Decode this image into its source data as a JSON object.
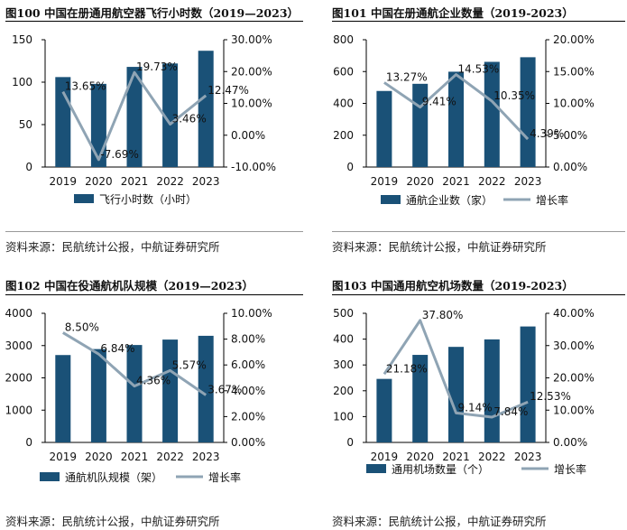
{
  "colors": {
    "bar": "#1a5177",
    "line": "#8fa4b4",
    "axis": "#000000"
  },
  "chart_data": [
    {
      "type": "bar",
      "title": "图100 中国在册通用航空器飞行小时数（2019—2023）",
      "source": "资料来源：民航统计公报，中航证券研究所",
      "categories": [
        "2019",
        "2020",
        "2021",
        "2022",
        "2023"
      ],
      "series": [
        {
          "name": "飞行小时数（小时）",
          "kind": "bar",
          "axis": "left",
          "values": [
            106,
            98,
            118,
            122,
            137
          ]
        },
        {
          "name": "",
          "kind": "line",
          "axis": "right",
          "values": [
            13.65,
            -7.69,
            19.73,
            3.46,
            12.47
          ]
        }
      ],
      "point_labels": [
        "13.65%",
        "-7.69%",
        "19.73%",
        "3.46%",
        "12.47%"
      ],
      "left_ticks": [
        "0",
        "50",
        "100",
        "150"
      ],
      "ylim": [
        0,
        150
      ],
      "right_ticks": [
        "-10.00%",
        "0.00%",
        "10.00%",
        "20.00%",
        "30.00%"
      ],
      "ylim_right": [
        -10,
        30
      ],
      "legend": [
        "飞行小时数（小时）"
      ]
    },
    {
      "type": "bar",
      "title": "图101 中国在册通航企业数量（2019-2023）",
      "source": "资料来源：民航统计公报，中航证券研究所",
      "categories": [
        "2019",
        "2020",
        "2021",
        "2022",
        "2023"
      ],
      "series": [
        {
          "name": "通航企业数（家）",
          "kind": "bar",
          "axis": "left",
          "values": [
            478,
            523,
            599,
            661,
            690
          ]
        },
        {
          "name": "增长率",
          "kind": "line",
          "axis": "right",
          "values": [
            13.27,
            9.41,
            14.53,
            10.35,
            4.39
          ]
        }
      ],
      "point_labels": [
        "13.27%",
        "9.41%",
        "14.53%",
        "10.35%",
        "4.39%"
      ],
      "left_ticks": [
        "0",
        "200",
        "400",
        "600",
        "800"
      ],
      "ylim": [
        0,
        800
      ],
      "right_ticks": [
        "0.00%",
        "5.00%",
        "10.00%",
        "15.00%",
        "20.00%"
      ],
      "ylim_right": [
        0,
        20
      ],
      "legend": [
        "通航企业数（家）",
        "增长率"
      ]
    },
    {
      "type": "bar",
      "title": "图102 中国在役通航机队规模（2019—2023）",
      "source": "资料来源：民航统计公报，中航证券研究所",
      "categories": [
        "2019",
        "2020",
        "2021",
        "2022",
        "2023"
      ],
      "series": [
        {
          "name": "通航机队规模（架）",
          "kind": "bar",
          "axis": "left",
          "values": [
            2707,
            2892,
            3018,
            3186,
            3303
          ]
        },
        {
          "name": "增长率",
          "kind": "line",
          "axis": "right",
          "values": [
            8.5,
            6.84,
            4.36,
            5.57,
            3.67
          ]
        }
      ],
      "point_labels": [
        "8.50%",
        "6.84%",
        "4.36%",
        "5.57%",
        "3.67%"
      ],
      "left_ticks": [
        "0",
        "1000",
        "2000",
        "3000",
        "4000"
      ],
      "ylim": [
        0,
        4000
      ],
      "right_ticks": [
        "0.00%",
        "2.00%",
        "4.00%",
        "6.00%",
        "8.00%",
        "10.00%"
      ],
      "ylim_right": [
        0,
        10
      ],
      "legend": [
        "通航机队规模（架）",
        "增长率"
      ]
    },
    {
      "type": "bar",
      "title": "图103 中国通用航空机场数量（2019-2023）",
      "source": "资料来源：民航统计公报，中航证券研究所",
      "categories": [
        "2019",
        "2020",
        "2021",
        "2022",
        "2023"
      ],
      "series": [
        {
          "name": "通用机场数量（个）",
          "kind": "bar",
          "axis": "left",
          "values": [
            246,
            339,
            370,
            399,
            449
          ]
        },
        {
          "name": "增长率",
          "kind": "line",
          "axis": "right",
          "values": [
            21.18,
            37.8,
            9.14,
            7.84,
            12.53
          ]
        }
      ],
      "point_labels": [
        "21.18%",
        "37.80%",
        "9.14%",
        "7.84%",
        "12.53%"
      ],
      "left_ticks": [
        "0",
        "100",
        "200",
        "300",
        "400",
        "500"
      ],
      "ylim": [
        0,
        500
      ],
      "right_ticks": [
        "0.00%",
        "10.00%",
        "20.00%",
        "30.00%",
        "40.00%"
      ],
      "ylim_right": [
        0,
        40
      ],
      "legend": [
        "通用机场数量（个）",
        "增长率"
      ]
    }
  ]
}
